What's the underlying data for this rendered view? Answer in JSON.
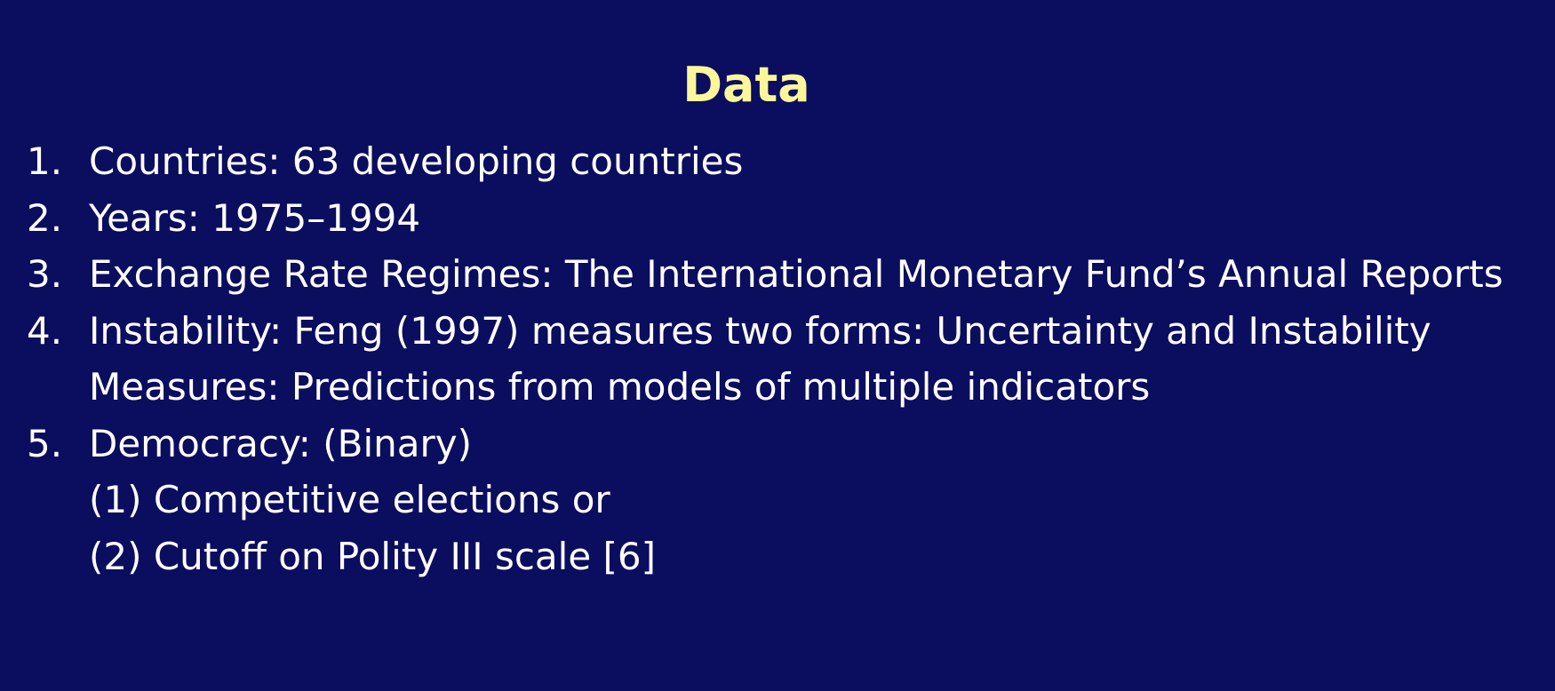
{
  "slide": {
    "title": "Data",
    "title_color": "#fbf69a",
    "background_color": "#0b0d5e",
    "text_color": "#ffffff",
    "items": [
      {
        "number": "1.",
        "text": "Countries: 63 developing countries"
      },
      {
        "number": "2.",
        "text": "Years: 1975–1994"
      },
      {
        "number": "3.",
        "text": "Exchange Rate Regimes:  The International Monetary Fund’s Annual Reports"
      },
      {
        "number": "4.",
        "text": "Instability: Feng (1997) measures two forms: Uncertainty and Instability",
        "continuation": "Measures: Predictions from models of multiple indicators"
      },
      {
        "number": "5.",
        "text": "Democracy: (Binary)",
        "sub_lines": [
          "(1) Competitive elections or",
          "(2) Cutoff on Polity III scale [6]"
        ]
      }
    ]
  }
}
